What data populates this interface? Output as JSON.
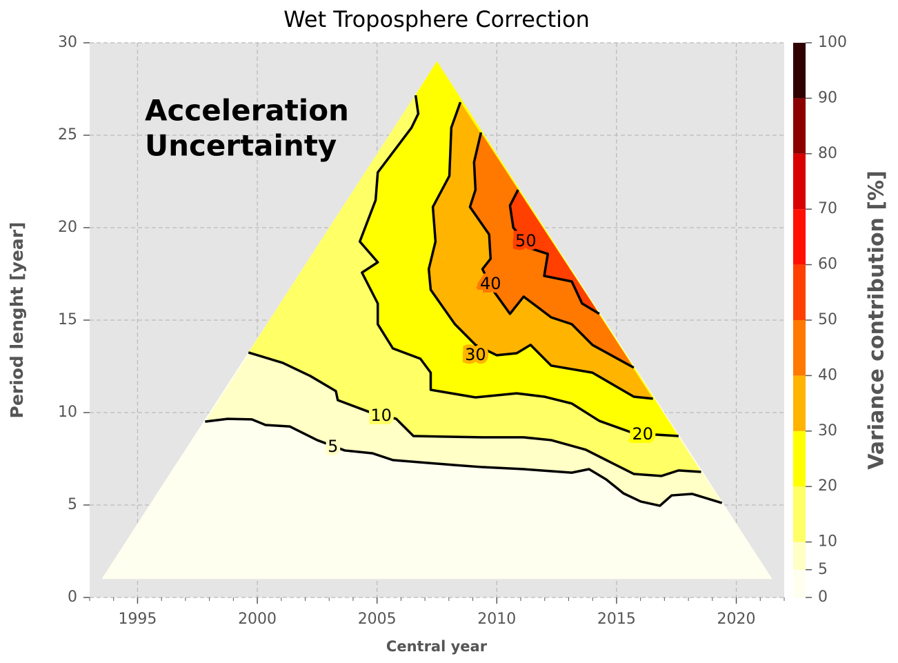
{
  "chart_data": {
    "type": "contourf",
    "title": "Wet Troposphere Correction",
    "annotation": [
      "Acceleration",
      "Uncertainty"
    ],
    "xlabel": "Central year",
    "ylabel": "Period lenght [year]",
    "colorbar_label": "Variance contribution [%]",
    "xlim": [
      1993,
      2022
    ],
    "xticks": [
      1995,
      2000,
      2005,
      2010,
      2015,
      2020
    ],
    "ylim": [
      0,
      30
    ],
    "yticks": [
      0,
      5,
      10,
      15,
      20,
      25,
      30
    ],
    "grid": true,
    "levels": [
      0,
      5,
      10,
      20,
      30,
      40,
      50,
      60,
      70,
      80,
      90,
      100
    ],
    "colors": [
      "#fffff0",
      "#ffffc6",
      "#ffff66",
      "#ffff00",
      "#ffb400",
      "#ff7800",
      "#ff4000",
      "#ff1000",
      "#d80000",
      "#8c0000",
      "#300000"
    ],
    "triangle": {
      "x": [
        1993.5,
        2021.5,
        2007.5
      ],
      "y": [
        1,
        1,
        29
      ]
    },
    "contours": [
      {
        "level": 5,
        "label_x": 2003.16,
        "label_y": 8.13,
        "x": [
          1997.82,
          1998.76,
          1999.77,
          2000.34,
          2001.35,
          2002.5,
          2003.65,
          2004.8,
          2005.66,
          2006.81,
          2008.25,
          2009.4,
          2011.12,
          2013.13,
          2013.85,
          2014.57,
          2015.29,
          2016.01,
          2016.81,
          2017.3,
          2018.16,
          2019.4
        ],
        "y": [
          9.51,
          9.66,
          9.63,
          9.33,
          9.25,
          8.51,
          7.95,
          7.8,
          7.43,
          7.31,
          7.16,
          7.05,
          6.94,
          6.75,
          6.94,
          6.38,
          5.63,
          5.19,
          4.96,
          5.52,
          5.6,
          5.11
        ]
      },
      {
        "level": 10,
        "label_x": 2005.17,
        "label_y": 9.81,
        "x": [
          1999.63,
          2001.06,
          2002.21,
          2003.28,
          2003.36,
          2004.66,
          2005.8,
          2006.52,
          2009.4,
          2011.12,
          2012.27,
          2013.71,
          2014.57,
          2015.72,
          2016.87,
          2017.59,
          2018.53
        ],
        "y": [
          13.25,
          12.69,
          11.98,
          11.16,
          10.67,
          10.04,
          9.66,
          8.73,
          8.66,
          8.66,
          8.51,
          7.99,
          7.43,
          6.68,
          6.57,
          6.87,
          6.79
        ]
      },
      {
        "level": 20,
        "label_x": 2016.09,
        "label_y": 8.81,
        "x": [
          2006.61,
          2006.72,
          2006.44,
          2005.03,
          2004.94,
          2004.28,
          2005.03,
          2004.37,
          2005.03,
          2005.03,
          2005.66,
          2006.81,
          2007.24,
          2007.24,
          2009.11,
          2010.83,
          2011.98,
          2013.13,
          2014.28,
          2015.72,
          2017.59
        ],
        "y": [
          27.16,
          26.16,
          25.41,
          22.99,
          21.49,
          19.25,
          18.13,
          17.57,
          15.9,
          14.78,
          13.47,
          12.91,
          12.16,
          11.23,
          10.82,
          11.04,
          10.86,
          10.49,
          9.55,
          8.88,
          8.73
        ]
      },
      {
        "level": 30,
        "label_x": 2009.11,
        "label_y": 13.1,
        "x": [
          2008.48,
          2008.1,
          2008.02,
          2007.33,
          2007.44,
          2007.16,
          2007.24,
          2008.25,
          2009.11,
          2010.0,
          2010.83,
          2011.41,
          2012.27,
          2013.99,
          2015.72,
          2016.52
        ],
        "y": [
          26.79,
          25.41,
          22.8,
          21.12,
          19.25,
          17.76,
          16.64,
          14.78,
          13.66,
          13.1,
          13.21,
          13.66,
          12.54,
          12.16,
          10.86,
          10.75
        ]
      },
      {
        "level": 40,
        "label_x": 2009.74,
        "label_y": 16.94,
        "x": [
          2009.34,
          2009.05,
          2009.11,
          2008.88,
          2009.68,
          2009.74,
          2009.4,
          2009.83,
          2010.55,
          2011.12,
          2011.7,
          2012.27,
          2013.13,
          2013.99,
          2015.72
        ],
        "y": [
          25.15,
          23.54,
          22.05,
          21.12,
          19.63,
          18.32,
          17.76,
          16.64,
          15.34,
          16.27,
          15.71,
          15.15,
          14.78,
          13.66,
          12.43
        ]
      },
      {
        "level": 50,
        "label_x": 2011.21,
        "label_y": 19.25,
        "x": [
          2010.89,
          2010.55,
          2010.69,
          2011.41,
          2012.13,
          2011.98,
          2013.13,
          2013.56,
          2014.28
        ],
        "y": [
          22.05,
          21.19,
          20.0,
          18.88,
          18.58,
          17.39,
          17.09,
          15.9,
          15.34
        ]
      }
    ]
  }
}
